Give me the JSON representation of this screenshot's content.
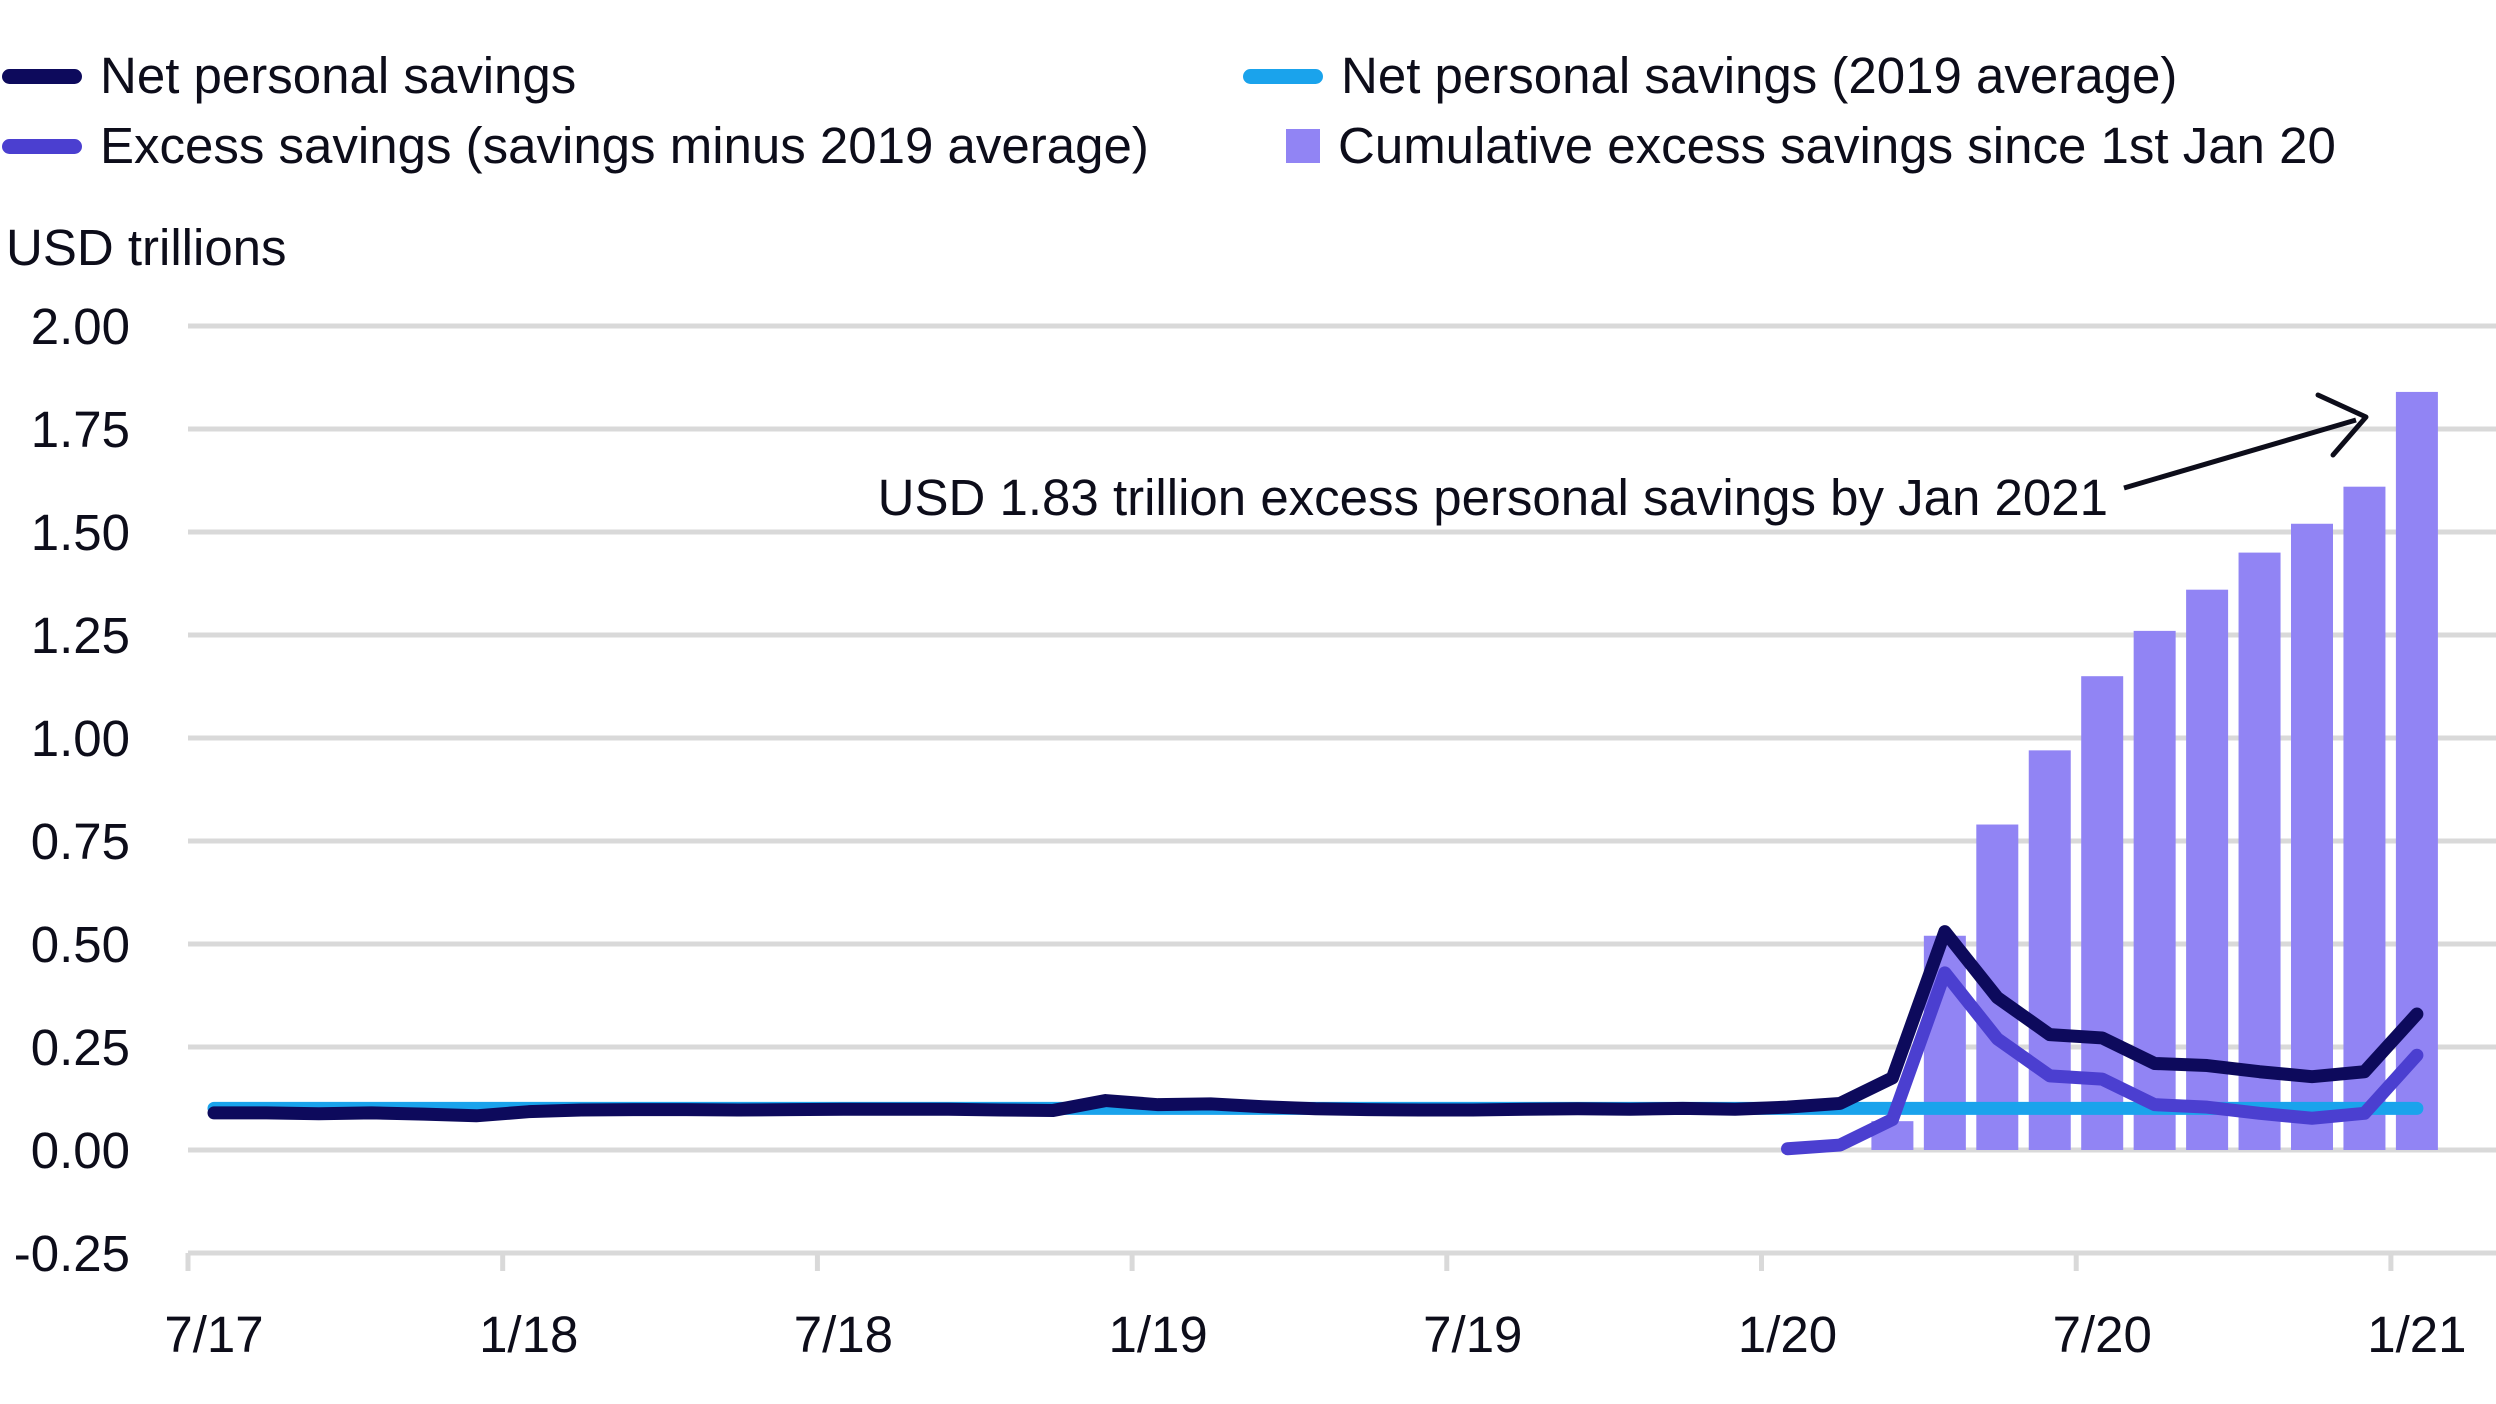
{
  "chart_data": {
    "type": "bar",
    "ylabel": "USD trillions",
    "ylim": [
      -0.25,
      2.0
    ],
    "yticks": [
      "2.00",
      "1.75",
      "1.50",
      "1.25",
      "1.00",
      "0.75",
      "0.50",
      "0.25",
      "0.00",
      "-0.25"
    ],
    "ytick_values": [
      2.0,
      1.75,
      1.5,
      1.25,
      1.0,
      0.75,
      0.5,
      0.25,
      0.0,
      -0.25
    ],
    "xticks": [
      "7/17",
      "1/18",
      "7/18",
      "1/19",
      "7/19",
      "1/20",
      "7/20",
      "1/21"
    ],
    "grid": true,
    "legend_position": "top",
    "annotation": "USD 1.83 trillion excess personal savings by Jan 2021",
    "months": [
      "2017-07",
      "2017-08",
      "2017-09",
      "2017-10",
      "2017-11",
      "2017-12",
      "2018-01",
      "2018-02",
      "2018-03",
      "2018-04",
      "2018-05",
      "2018-06",
      "2018-07",
      "2018-08",
      "2018-09",
      "2018-10",
      "2018-11",
      "2018-12",
      "2019-01",
      "2019-02",
      "2019-03",
      "2019-04",
      "2019-05",
      "2019-06",
      "2019-07",
      "2019-08",
      "2019-09",
      "2019-10",
      "2019-11",
      "2019-12",
      "2020-01",
      "2020-02",
      "2020-03",
      "2020-04",
      "2020-05",
      "2020-06",
      "2020-07",
      "2020-08",
      "2020-09",
      "2020-10",
      "2020-11",
      "2020-12",
      "2021-01"
    ],
    "series": [
      {
        "name": "Net personal savings",
        "kind": "line",
        "color": "#0d0a5c",
        "x": [
          "2017-07",
          "2017-08",
          "2017-09",
          "2017-10",
          "2017-11",
          "2017-12",
          "2018-01",
          "2018-02",
          "2018-03",
          "2018-04",
          "2018-05",
          "2018-06",
          "2018-07",
          "2018-08",
          "2018-09",
          "2018-10",
          "2018-11",
          "2018-12",
          "2019-01",
          "2019-02",
          "2019-03",
          "2019-04",
          "2019-05",
          "2019-06",
          "2019-07",
          "2019-08",
          "2019-09",
          "2019-10",
          "2019-11",
          "2019-12",
          "2020-01",
          "2020-02",
          "2020-03",
          "2020-04",
          "2020-05",
          "2020-06",
          "2020-07",
          "2020-08",
          "2020-09",
          "2020-10",
          "2020-11",
          "2020-12",
          "2021-01"
        ],
        "values": [
          0.09,
          0.09,
          0.088,
          0.09,
          0.087,
          0.083,
          0.093,
          0.097,
          0.098,
          0.098,
          0.097,
          0.098,
          0.099,
          0.099,
          0.099,
          0.097,
          0.096,
          0.12,
          0.11,
          0.112,
          0.105,
          0.1,
          0.098,
          0.097,
          0.097,
          0.099,
          0.1,
          0.099,
          0.101,
          0.099,
          0.104,
          0.113,
          0.175,
          0.53,
          0.37,
          0.28,
          0.272,
          0.21,
          0.205,
          0.19,
          0.178,
          0.19,
          0.33
        ]
      },
      {
        "name": "Net personal savings (2019 average)",
        "kind": "line",
        "color": "#1aa3ec",
        "x": [
          "2017-07",
          "2021-01"
        ],
        "values": [
          0.101,
          0.101
        ]
      },
      {
        "name": "Excess savings (savings minus 2019 average)",
        "kind": "line",
        "color": "#4b3fd0",
        "x": [
          "2020-01",
          "2020-02",
          "2020-03",
          "2020-04",
          "2020-05",
          "2020-06",
          "2020-07",
          "2020-08",
          "2020-09",
          "2020-10",
          "2020-11",
          "2020-12",
          "2021-01"
        ],
        "values": [
          0.003,
          0.012,
          0.074,
          0.43,
          0.27,
          0.18,
          0.172,
          0.11,
          0.104,
          0.089,
          0.077,
          0.089,
          0.23
        ]
      },
      {
        "name": "Cumulative excess savings since 1st Jan 20",
        "kind": "bar",
        "color": "#9184f4",
        "x": [
          "2020-03",
          "2020-04",
          "2020-05",
          "2020-06",
          "2020-07",
          "2020-08",
          "2020-09",
          "2020-10",
          "2020-11",
          "2020-12",
          "2021-01"
        ],
        "values": [
          0.07,
          0.52,
          0.79,
          0.97,
          1.15,
          1.26,
          1.36,
          1.45,
          1.52,
          1.61,
          1.84
        ]
      }
    ]
  }
}
